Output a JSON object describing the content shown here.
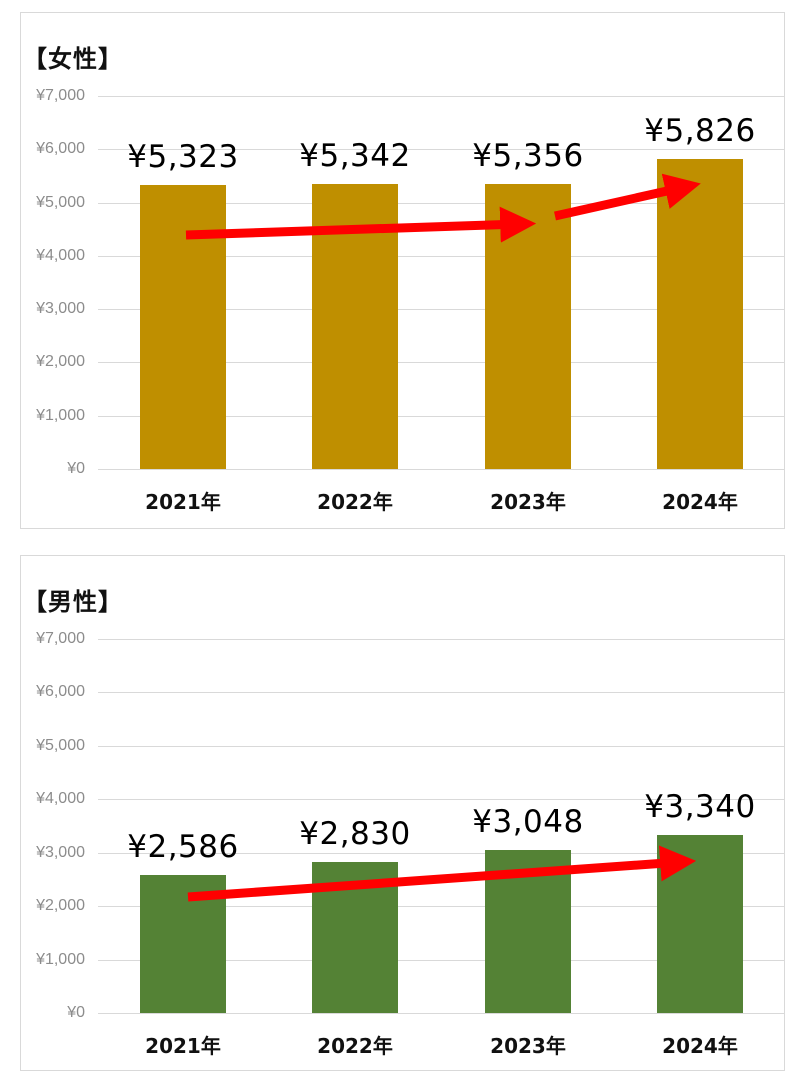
{
  "chart_data": [
    {
      "type": "bar",
      "title": "【女性】",
      "categories": [
        "2021年",
        "2022年",
        "2023年",
        "2024年"
      ],
      "values": [
        5323,
        5342,
        5356,
        5826
      ],
      "value_labels": [
        "¥5,323",
        "¥5,342",
        "¥5,356",
        "¥5,826"
      ],
      "xlabel": "",
      "ylabel": "",
      "ylim": [
        0,
        7000
      ],
      "yticks": [
        "¥0",
        "¥1,000",
        "¥2,000",
        "¥3,000",
        "¥4,000",
        "¥5,000",
        "¥6,000",
        "¥7,000"
      ],
      "grid": true,
      "bar_color": "#bf8f00",
      "annotations": [
        "red arrow 2021→2023 (rising)",
        "red arrow 2023→2024 (rising)"
      ],
      "arrow_color": "#ff0000"
    },
    {
      "type": "bar",
      "title": "【男性】",
      "categories": [
        "2021年",
        "2022年",
        "2023年",
        "2024年"
      ],
      "values": [
        2586,
        2830,
        3048,
        3340
      ],
      "value_labels": [
        "¥2,586",
        "¥2,830",
        "¥3,048",
        "¥3,340"
      ],
      "xlabel": "",
      "ylabel": "",
      "ylim": [
        0,
        7000
      ],
      "yticks": [
        "¥0",
        "¥1,000",
        "¥2,000",
        "¥3,000",
        "¥4,000",
        "¥5,000",
        "¥6,000",
        "¥7,000"
      ],
      "grid": true,
      "bar_color": "#548235",
      "annotations": [
        "red arrow 2021→2024 (rising)"
      ],
      "arrow_color": "#ff0000"
    }
  ]
}
